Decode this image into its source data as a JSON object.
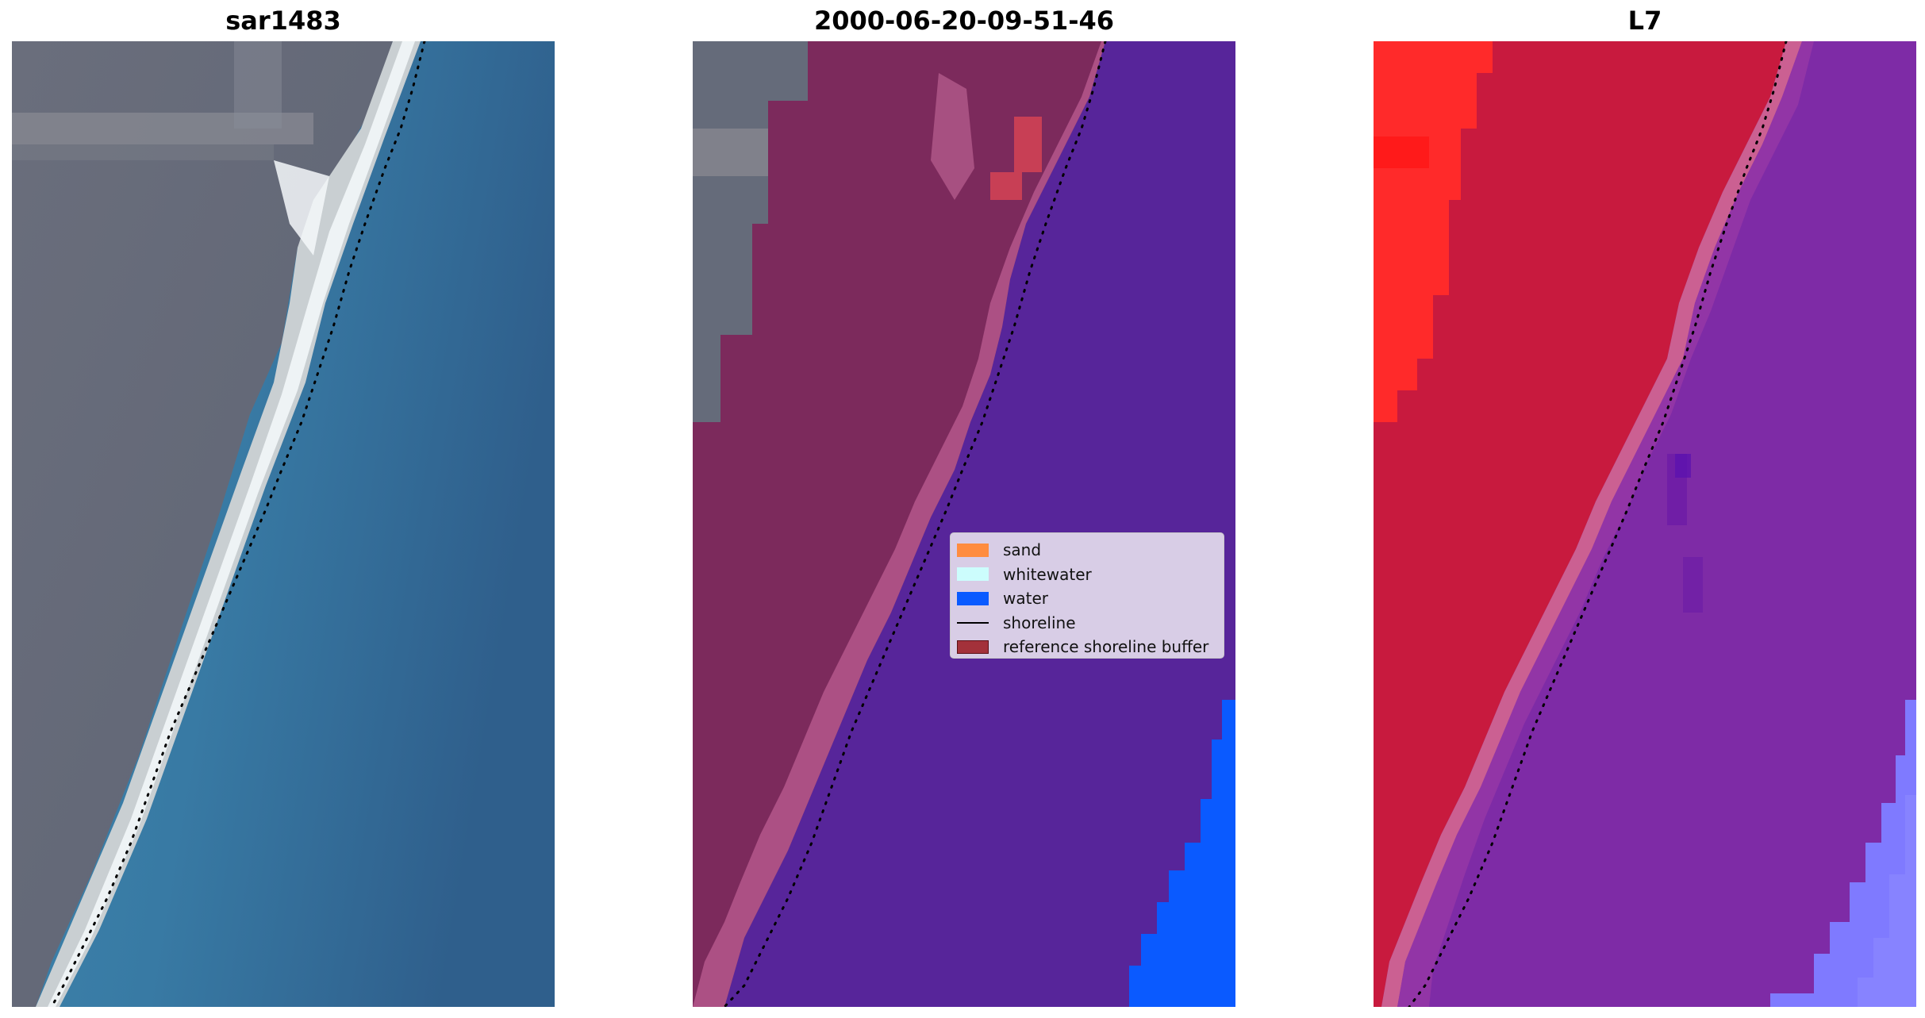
{
  "panels": [
    {
      "title": "sar1483"
    },
    {
      "title": "2000-06-20-09-51-46"
    },
    {
      "title": "L7"
    }
  ],
  "legend": {
    "placement": "center-right",
    "items": [
      {
        "label": "sand",
        "color": "#ff8c3f",
        "kind": "patch"
      },
      {
        "label": "whitewater",
        "color": "#ccfdfd",
        "kind": "patch"
      },
      {
        "label": "water",
        "color": "#0a5aff",
        "kind": "patch"
      },
      {
        "label": "shoreline",
        "color": "#000000",
        "kind": "line"
      },
      {
        "label": "reference shoreline buffer",
        "color": "#a3313a",
        "kind": "patch"
      }
    ]
  },
  "colors": {
    "rgb_land": "#656b7a",
    "rgb_sea": "#3b7ca6",
    "rgb_beach": "#dfe6ea",
    "class_land": "#7c2a5c",
    "class_sea": "#57259a",
    "class_water": "#0a5aff",
    "ndwi_land": "#c81a3e",
    "ndwi_sea": "#7e2ba6",
    "ndwi_red": "#ff2a2a"
  }
}
